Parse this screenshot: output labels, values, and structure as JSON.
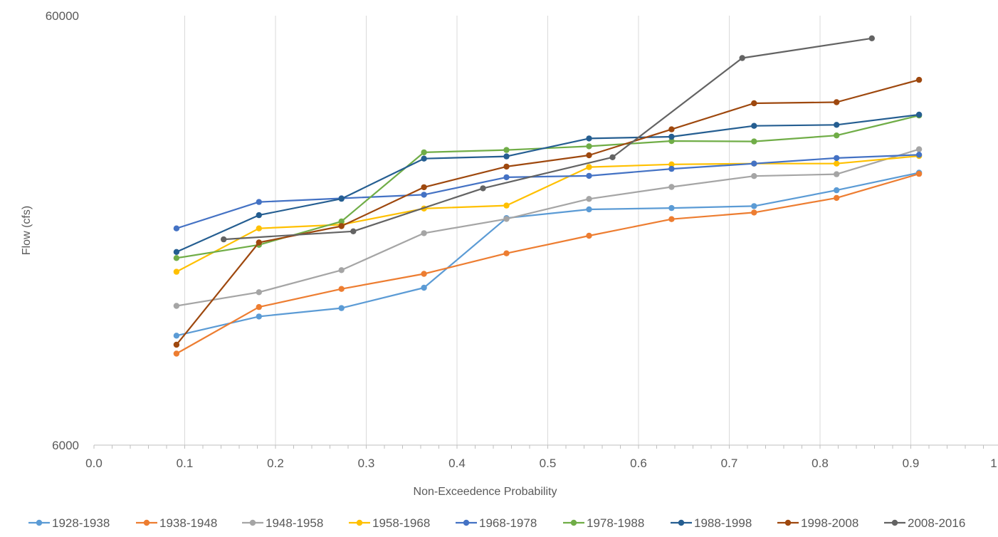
{
  "chart_data": {
    "type": "line",
    "title": "",
    "xlabel": "Non-Exceedence Probability",
    "ylabel": "Flow (cfs)",
    "x_scale": "linear",
    "y_scale": "log",
    "xlim": [
      0,
      1
    ],
    "ylim": [
      6000,
      60000
    ],
    "x_ticks": [
      0,
      0.1,
      0.2,
      0.3,
      0.4,
      0.5,
      0.6,
      0.7,
      0.8,
      0.9,
      1
    ],
    "x_tick_labels": [
      "0.0",
      "0.1",
      "0.2",
      "0.3",
      "0.4",
      "0.5",
      "0.6",
      "0.7",
      "0.8",
      "0.9",
      "1"
    ],
    "y_ticks": [
      6000,
      60000
    ],
    "y_tick_labels": [
      "6000",
      "60000"
    ],
    "grid": {
      "vertical": true,
      "horizontal": false
    },
    "legend_position": "bottom",
    "series": [
      {
        "name": "1928-1938",
        "color": "#5B9BD5",
        "x": [
          0.0909,
          0.1818,
          0.2727,
          0.3636,
          0.4545,
          0.5455,
          0.6364,
          0.7273,
          0.8182,
          0.9091
        ],
        "y": [
          10790,
          11960,
          12510,
          13950,
          20270,
          21240,
          21390,
          21610,
          23530,
          25850
        ]
      },
      {
        "name": "1938-1948",
        "color": "#ED7D31",
        "x": [
          0.0909,
          0.1818,
          0.2727,
          0.3636,
          0.4545,
          0.5455,
          0.6364,
          0.7273,
          0.8182,
          0.9091
        ],
        "y": [
          9800,
          12580,
          13860,
          15030,
          16780,
          18440,
          20150,
          20880,
          22580,
          25690
        ]
      },
      {
        "name": "1948-1958",
        "color": "#A5A5A5",
        "x": [
          0.0909,
          0.1818,
          0.2727,
          0.3636,
          0.4545,
          0.5455,
          0.6364,
          0.7273,
          0.8182,
          0.9091
        ],
        "y": [
          12660,
          13620,
          15330,
          18690,
          20180,
          22460,
          23950,
          25390,
          25640,
          29310
        ]
      },
      {
        "name": "1958-1968",
        "color": "#FFC000",
        "x": [
          0.0909,
          0.1818,
          0.2727,
          0.3636,
          0.4545,
          0.5455,
          0.6364,
          0.7273,
          0.8182,
          0.9091
        ],
        "y": [
          15200,
          19180,
          19570,
          21330,
          21680,
          26640,
          27030,
          27150,
          27150,
          28280
        ]
      },
      {
        "name": "1968-1978",
        "color": "#4472C4",
        "x": [
          0.0909,
          0.1818,
          0.2727,
          0.3636,
          0.4545,
          0.5455,
          0.6364,
          0.7273,
          0.8182,
          0.9091
        ],
        "y": [
          19180,
          22100,
          22530,
          22970,
          25230,
          25420,
          26390,
          27150,
          27970,
          28460
        ]
      },
      {
        "name": "1978-1988",
        "color": "#70AD47",
        "x": [
          0.0909,
          0.1818,
          0.2727,
          0.3636,
          0.4545,
          0.5455,
          0.6364,
          0.7273,
          0.8182,
          0.9091
        ],
        "y": [
          16360,
          17560,
          19910,
          28830,
          29200,
          29780,
          30640,
          30570,
          31570,
          35130
        ]
      },
      {
        "name": "1988-1998",
        "color": "#255E91",
        "x": [
          0.0909,
          0.1818,
          0.2727,
          0.3636,
          0.4545,
          0.5455,
          0.6364,
          0.7273,
          0.8182,
          0.9091
        ],
        "y": [
          16900,
          20590,
          22480,
          27880,
          28210,
          31060,
          31350,
          33230,
          33410,
          35290
        ]
      },
      {
        "name": "1998-2008",
        "color": "#9E480E",
        "x": [
          0.0909,
          0.1818,
          0.2727,
          0.3636,
          0.4545,
          0.5455,
          0.6364,
          0.7273,
          0.8182,
          0.9091
        ],
        "y": [
          10280,
          17780,
          19410,
          23910,
          26710,
          28390,
          32620,
          37510,
          37730,
          42530
        ]
      },
      {
        "name": "2008-2016",
        "color": "#636363",
        "x": [
          0.1429,
          0.2857,
          0.4286,
          0.5714,
          0.7143,
          0.8571
        ],
        "y": [
          18080,
          18880,
          23780,
          28080,
          47800,
          53140
        ]
      }
    ]
  }
}
